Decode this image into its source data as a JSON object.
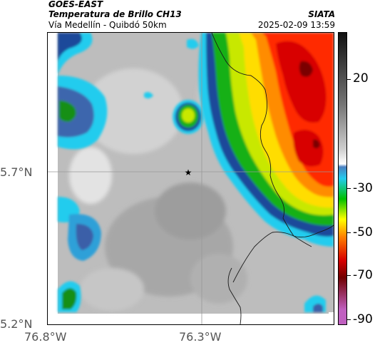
{
  "header": {
    "satellite": "GOES-EAST",
    "product": "Temperatura de Brillo CH13",
    "region": "Vía Medellín - Quibdó 50km",
    "org": "SIATA",
    "timestamp": "2025-02-09 13:59"
  },
  "axes": {
    "lat_labels": [
      "5.7°N",
      "5.2°N"
    ],
    "lon_labels": [
      "76.8°W",
      "76.3°W"
    ]
  },
  "colorbar": {
    "tick_labels": [
      "20",
      "-30",
      "-50",
      "-70",
      "-90"
    ],
    "colors": [
      "#111111",
      "#777777",
      "#cfcfcf",
      "#ffffff",
      "#4a7fc0",
      "#22ccee",
      "#00c000",
      "#ffff00",
      "#ff8000",
      "#d80000",
      "#700000",
      "#c060c0"
    ]
  },
  "marker": {
    "icon": "star-icon",
    "glyph": "★"
  }
}
